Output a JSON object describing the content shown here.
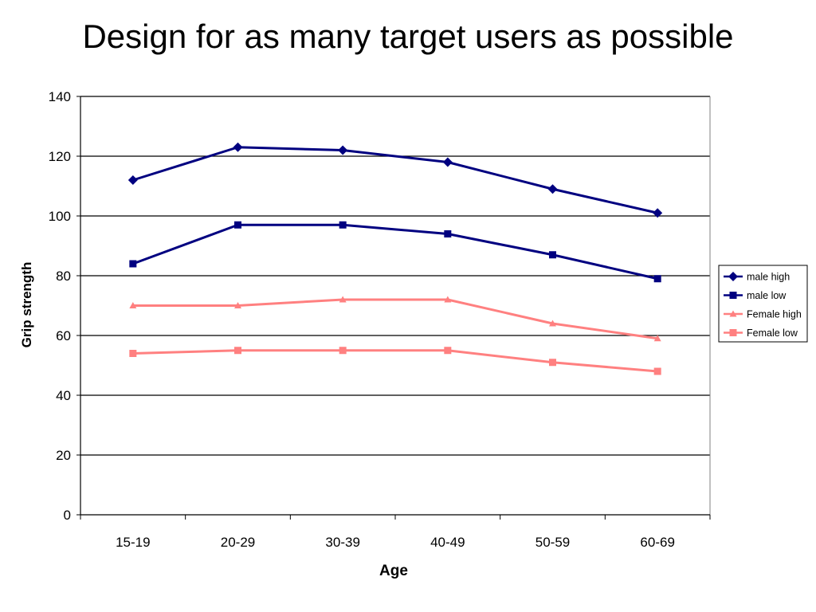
{
  "page": {
    "title": "Design for as many target users as possible"
  },
  "chart_data": {
    "type": "line",
    "title": "",
    "xlabel": "Age",
    "ylabel": "Grip strength",
    "categories": [
      "15-19",
      "20-29",
      "30-39",
      "40-49",
      "50-59",
      "60-69"
    ],
    "ylim": [
      0,
      140
    ],
    "yticks": [
      0,
      20,
      40,
      60,
      80,
      100,
      120,
      140
    ],
    "grid": "horizontal",
    "legend": "right",
    "series": [
      {
        "name": "male high",
        "values": [
          112,
          123,
          122,
          118,
          109,
          101
        ],
        "color": "#000080",
        "marker": "diamond"
      },
      {
        "name": "male low",
        "values": [
          84,
          97,
          97,
          94,
          87,
          79
        ],
        "color": "#000080",
        "marker": "square"
      },
      {
        "name": "Female high",
        "values": [
          70,
          70,
          72,
          72,
          64,
          59
        ],
        "color": "#ff8080",
        "marker": "triangle"
      },
      {
        "name": "Female low",
        "values": [
          54,
          55,
          55,
          55,
          51,
          48
        ],
        "color": "#ff8080",
        "marker": "square"
      }
    ]
  }
}
